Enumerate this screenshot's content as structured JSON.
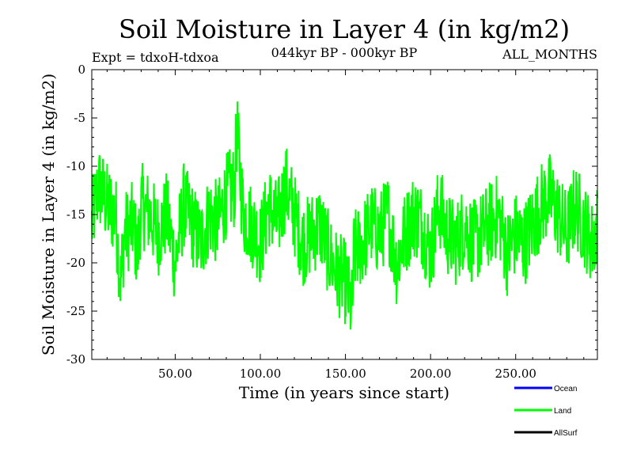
{
  "chart_data": {
    "type": "line",
    "title": "Soil Moisture in Layer 4 (in kg/m2)",
    "subtitle": "044kyr BP - 000kyr BP",
    "left_note": "Expt = tdxoH-tdxoa",
    "right_note": "ALL_MONTHS",
    "xlabel": "Time (in years since start)",
    "ylabel": "Soil Moisture in Layer 4 (in kg/m2)",
    "xlim": [
      1,
      298
    ],
    "ylim": [
      -30,
      0
    ],
    "xticks": [
      50,
      100,
      150,
      200,
      250
    ],
    "xtick_labels": [
      "50.00",
      "100.00",
      "150.00",
      "200.00",
      "250.00"
    ],
    "yticks": [
      0,
      -5,
      -10,
      -15,
      -20,
      -25,
      -30
    ],
    "ytick_labels": [
      "0",
      "-5",
      "-10",
      "-15",
      "-20",
      "-25",
      "-30"
    ],
    "grid": false,
    "legend_position": "bottom-right",
    "series": [
      {
        "name": "Ocean",
        "color": "#0000ff",
        "x": [],
        "y": []
      },
      {
        "name": "Land",
        "color": "#00ff00",
        "x": [
          1,
          5,
          10,
          15,
          18,
          20,
          25,
          28,
          30,
          35,
          40,
          45,
          50,
          55,
          60,
          65,
          70,
          75,
          80,
          85,
          86,
          90,
          95,
          100,
          105,
          110,
          115,
          120,
          125,
          130,
          135,
          140,
          145,
          150,
          154,
          155,
          160,
          165,
          170,
          175,
          180,
          185,
          190,
          195,
          200,
          205,
          210,
          215,
          220,
          225,
          230,
          235,
          240,
          245,
          250,
          255,
          260,
          265,
          270,
          275,
          280,
          285,
          290,
          295,
          298
        ],
        "y": [
          -16,
          -12,
          -14,
          -15,
          -22,
          -17,
          -16,
          -19,
          -14,
          -15,
          -17,
          -15,
          -20,
          -14,
          -16,
          -18,
          -15,
          -16,
          -13,
          -12,
          -6,
          -15,
          -16,
          -18,
          -14,
          -16,
          -12,
          -15,
          -18,
          -17,
          -16,
          -19,
          -21,
          -22,
          -25,
          -19,
          -18,
          -16,
          -17,
          -15,
          -20,
          -17,
          -15,
          -16,
          -19,
          -14,
          -17,
          -18,
          -16,
          -18,
          -17,
          -16,
          -15,
          -19,
          -17,
          -18,
          -16,
          -14,
          -13,
          -15,
          -17,
          -14,
          -16,
          -18,
          -16
        ]
      },
      {
        "name": "AllSurf",
        "color": "#000000",
        "x": [],
        "y": []
      }
    ]
  }
}
